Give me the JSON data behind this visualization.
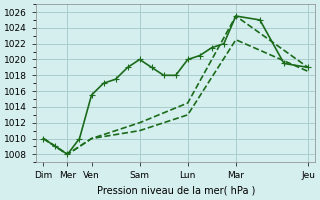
{
  "title": "",
  "xlabel": "Pression niveau de la mer( hPa )",
  "ylabel": "",
  "background_color": "#d5eeee",
  "grid_color": "#aacccc",
  "line_color": "#1a6b1a",
  "ylim": [
    1007,
    1027
  ],
  "yticks": [
    1008,
    1010,
    1012,
    1014,
    1016,
    1018,
    1020,
    1022,
    1024,
    1026
  ],
  "xtick_labels": [
    "Dim",
    "Mer",
    "Ven",
    "",
    "Sam",
    "",
    "Lun",
    "",
    "Mar",
    "",
    "",
    "Jeu"
  ],
  "xtick_positions": [
    0,
    1,
    2,
    3,
    4,
    5,
    6,
    7,
    8,
    9,
    10,
    11
  ],
  "series1": {
    "x": [
      0,
      0.5,
      1,
      1.5,
      2,
      2.5,
      3,
      3.5,
      4,
      4.5,
      5,
      5.5,
      6,
      6.5,
      7,
      7.5,
      8,
      9,
      10,
      11
    ],
    "y": [
      1010,
      1009,
      1008,
      1010,
      1015.5,
      1017,
      1017.5,
      1019,
      1020,
      1019,
      1018,
      1018,
      1020,
      1020.5,
      1021.5,
      1022,
      1025.5,
      1025,
      1019.5,
      1019
    ]
  },
  "series2": {
    "x": [
      0,
      1,
      2,
      4,
      6,
      8,
      11
    ],
    "y": [
      1010,
      1008,
      1010,
      1011,
      1013,
      1022.5,
      1018.5
    ]
  },
  "series3": {
    "x": [
      0,
      1,
      2,
      4,
      6,
      8,
      11
    ],
    "y": [
      1010,
      1008,
      1010,
      1012,
      1014.5,
      1025.5,
      1019
    ]
  },
  "vlines_x": [
    1,
    4,
    6,
    8,
    11
  ],
  "marker_size": 3,
  "line_width": 1.2
}
